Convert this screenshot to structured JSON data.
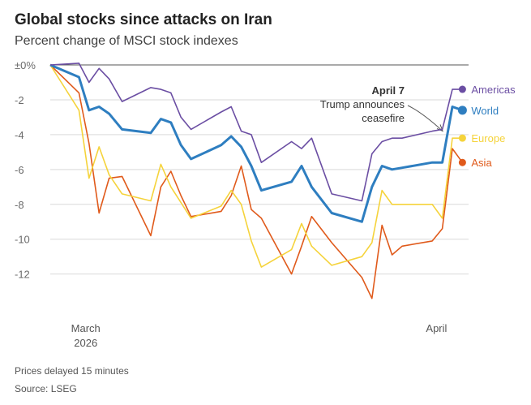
{
  "chart_data": {
    "type": "line",
    "title": "Global stocks since attacks on Iran",
    "subtitle": "Percent change of MSCI stock indexes",
    "ylim": [
      -13.6,
      0
    ],
    "yticks": [
      {
        "value": 0,
        "label": "±0%"
      },
      {
        "value": -2,
        "label": "-2"
      },
      {
        "value": -4,
        "label": "-4"
      },
      {
        "value": -6,
        "label": "-6"
      },
      {
        "value": -8,
        "label": "-8"
      },
      {
        "value": -10,
        "label": "-10"
      },
      {
        "value": -12,
        "label": "-12"
      }
    ],
    "x_domain": [
      0,
      28
    ],
    "xticks": [
      {
        "t": 1,
        "label": "March",
        "sublabel": "2026"
      },
      {
        "t": 26.5,
        "label": "April",
        "sublabel": ""
      }
    ],
    "series": [
      {
        "name": "Americas",
        "color": "#6b4ea3",
        "points": [
          [
            0,
            0
          ],
          [
            2,
            0.1
          ],
          [
            2.7,
            -1.0
          ],
          [
            3.4,
            -0.2
          ],
          [
            4.1,
            -0.8
          ],
          [
            5,
            -2.1
          ],
          [
            7,
            -1.3
          ],
          [
            7.7,
            -1.4
          ],
          [
            8.4,
            -1.6
          ],
          [
            9.1,
            -3.0
          ],
          [
            9.8,
            -3.7
          ],
          [
            11.9,
            -2.7
          ],
          [
            12.6,
            -2.4
          ],
          [
            13.3,
            -3.8
          ],
          [
            14,
            -4.0
          ],
          [
            14.7,
            -5.6
          ],
          [
            16.8,
            -4.4
          ],
          [
            17.5,
            -4.8
          ],
          [
            18.2,
            -4.2
          ],
          [
            19.6,
            -7.4
          ],
          [
            21.7,
            -7.8
          ],
          [
            22.4,
            -5.1
          ],
          [
            23.1,
            -4.4
          ],
          [
            23.8,
            -4.2
          ],
          [
            24.5,
            -4.2
          ],
          [
            26.6,
            -3.8
          ],
          [
            27.3,
            -3.7
          ],
          [
            28,
            -1.4
          ],
          [
            28.7,
            -1.4
          ]
        ]
      },
      {
        "name": "World",
        "color": "#2e7ec0",
        "points": [
          [
            0,
            0
          ],
          [
            2,
            -0.7
          ],
          [
            2.7,
            -2.6
          ],
          [
            3.4,
            -2.4
          ],
          [
            4.1,
            -2.8
          ],
          [
            5,
            -3.7
          ],
          [
            7,
            -3.9
          ],
          [
            7.7,
            -3.1
          ],
          [
            8.4,
            -3.3
          ],
          [
            9.1,
            -4.6
          ],
          [
            9.8,
            -5.4
          ],
          [
            11.9,
            -4.6
          ],
          [
            12.6,
            -4.1
          ],
          [
            13.3,
            -4.7
          ],
          [
            14,
            -5.8
          ],
          [
            14.7,
            -7.2
          ],
          [
            16.8,
            -6.7
          ],
          [
            17.5,
            -5.8
          ],
          [
            18.2,
            -7.0
          ],
          [
            19.6,
            -8.5
          ],
          [
            21.7,
            -9.0
          ],
          [
            22.4,
            -7.0
          ],
          [
            23.1,
            -5.8
          ],
          [
            23.8,
            -6.0
          ],
          [
            24.5,
            -5.9
          ],
          [
            26.6,
            -5.6
          ],
          [
            27.3,
            -5.6
          ],
          [
            28,
            -2.4
          ],
          [
            28.7,
            -2.6
          ]
        ]
      },
      {
        "name": "Europe",
        "color": "#f5d33b",
        "points": [
          [
            0,
            0
          ],
          [
            2,
            -2.6
          ],
          [
            2.7,
            -6.5
          ],
          [
            3.4,
            -4.7
          ],
          [
            4.1,
            -6.3
          ],
          [
            5,
            -7.4
          ],
          [
            7,
            -7.8
          ],
          [
            7.7,
            -5.7
          ],
          [
            8.4,
            -7.0
          ],
          [
            9.1,
            -7.9
          ],
          [
            9.8,
            -8.8
          ],
          [
            11.9,
            -8.1
          ],
          [
            12.6,
            -7.2
          ],
          [
            13.3,
            -8.0
          ],
          [
            14,
            -10.1
          ],
          [
            14.7,
            -11.6
          ],
          [
            16.8,
            -10.6
          ],
          [
            17.5,
            -9.1
          ],
          [
            18.2,
            -10.4
          ],
          [
            19.6,
            -11.5
          ],
          [
            21.7,
            -11.0
          ],
          [
            22.4,
            -10.2
          ],
          [
            23.1,
            -7.2
          ],
          [
            23.8,
            -8.0
          ],
          [
            26.6,
            -8.0
          ],
          [
            27.3,
            -8.8
          ],
          [
            28,
            -4.2
          ],
          [
            28.7,
            -4.2
          ]
        ]
      },
      {
        "name": "Asia",
        "color": "#e05a1b",
        "points": [
          [
            0,
            0
          ],
          [
            2,
            -1.6
          ],
          [
            2.7,
            -4.5
          ],
          [
            3.4,
            -8.5
          ],
          [
            4.1,
            -6.5
          ],
          [
            5,
            -6.4
          ],
          [
            7,
            -9.8
          ],
          [
            7.7,
            -7.0
          ],
          [
            8.4,
            -6.1
          ],
          [
            9.1,
            -7.5
          ],
          [
            9.8,
            -8.7
          ],
          [
            11.9,
            -8.4
          ],
          [
            12.6,
            -7.5
          ],
          [
            13.3,
            -5.8
          ],
          [
            14,
            -8.3
          ],
          [
            14.7,
            -8.8
          ],
          [
            16.8,
            -12.0
          ],
          [
            17.5,
            -10.4
          ],
          [
            18.2,
            -8.7
          ],
          [
            19.6,
            -10.2
          ],
          [
            21.7,
            -12.2
          ],
          [
            22.4,
            -13.4
          ],
          [
            23.1,
            -9.2
          ],
          [
            23.8,
            -10.9
          ],
          [
            24.5,
            -10.4
          ],
          [
            26.6,
            -10.1
          ],
          [
            27.3,
            -9.4
          ],
          [
            28,
            -4.8
          ],
          [
            28.7,
            -5.6
          ]
        ]
      }
    ],
    "annotation": {
      "t": 28,
      "value": -3.7,
      "title": "April 7",
      "lines": [
        "Trump announces",
        "ceasefire"
      ]
    },
    "notes": [
      "Prices delayed 15 minutes",
      "Source: LSEG"
    ]
  }
}
